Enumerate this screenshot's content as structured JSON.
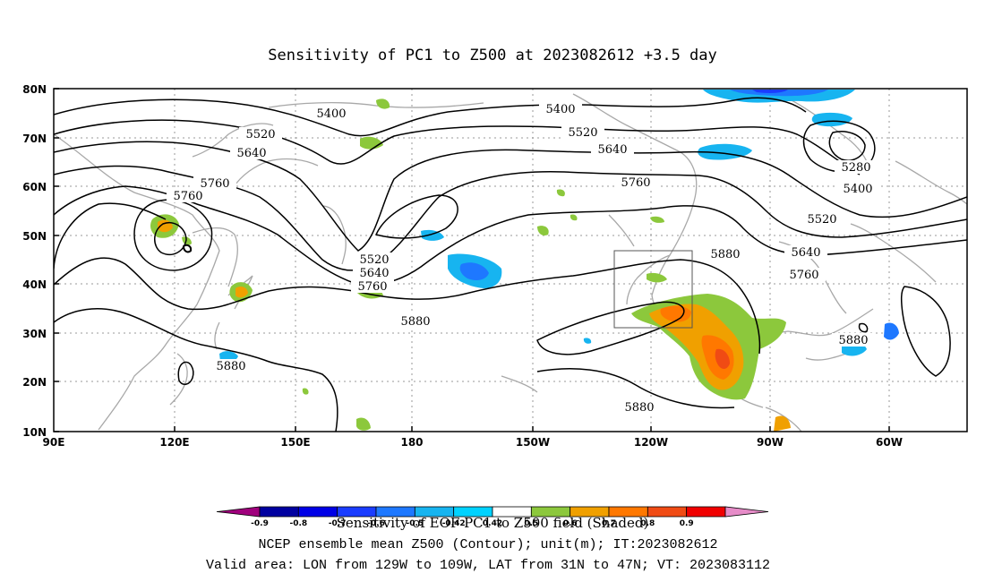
{
  "title": "Sensitivity of PC1 to Z500 at 2023082612 +3.5 day",
  "map": {
    "lon_ticks": [
      "90E",
      "120E",
      "150E",
      "180",
      "150W",
      "120W",
      "90W",
      "60W"
    ],
    "lat_ticks": [
      "80N",
      "70N",
      "60N",
      "50N",
      "40N",
      "30N",
      "20N",
      "10N"
    ],
    "contour_labels": [
      "5400",
      "5400",
      "5520",
      "5520",
      "5640",
      "5640",
      "5760",
      "5760",
      "5760",
      "5520",
      "5640",
      "5760",
      "5280",
      "5400",
      "5520",
      "5640",
      "5760",
      "5880",
      "5880",
      "5880",
      "5880",
      "5880"
    ],
    "valid_box": {
      "lon_from": "129W",
      "lon_to": "109W",
      "lat_from": "31N",
      "lat_to": "47N"
    }
  },
  "colorbar": {
    "labels": [
      "-0.9",
      "-0.8",
      "-0.7",
      "-0.6",
      "-0.5",
      "-0.42",
      "0.42",
      "0.5",
      "0.6",
      "0.7",
      "0.8",
      "0.9"
    ],
    "colors": [
      "#a0007d",
      "#0000a0",
      "#0000e6",
      "#1a3cff",
      "#1e78ff",
      "#17b4f0",
      "#00d2ff",
      "#ffffff",
      "#8cc83c",
      "#f0a000",
      "#ff7800",
      "#f04b14",
      "#f00000",
      "#e68cc8"
    ],
    "title": "Sensitivity of EOF PC1 to Z500 field (Shaded)"
  },
  "footer": {
    "line1": "NCEP ensemble mean Z500 (Contour); unit(m); IT:2023082612",
    "line2": "Valid area: LON from 129W to 109W, LAT from 31N to 47N; VT: 2023083112"
  }
}
